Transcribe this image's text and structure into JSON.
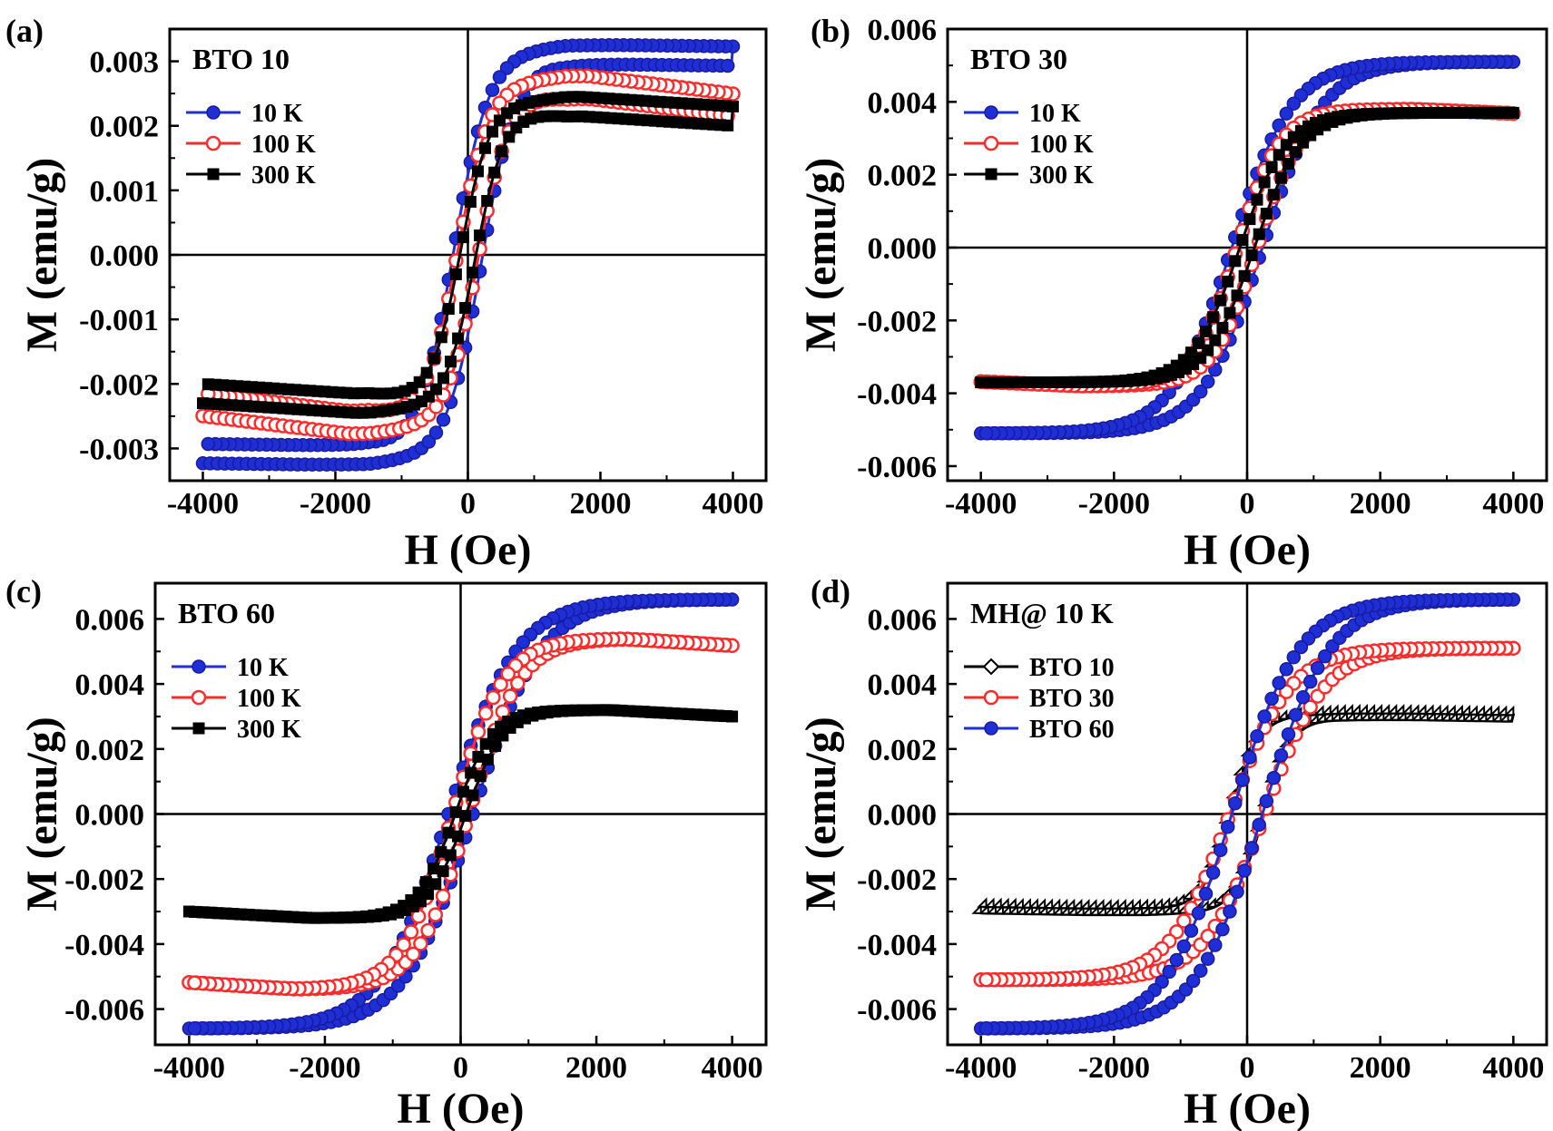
{
  "chart_data": [
    {
      "type": "line",
      "panel": "(a)",
      "title": "BTO 10",
      "xlabel": "H (Oe)",
      "ylabel": "M (emu/g)",
      "xlim": [
        -4500,
        4500
      ],
      "ylim": [
        -0.0035,
        0.0035
      ],
      "xticks": [
        -4000,
        -2000,
        0,
        2000,
        4000
      ],
      "yticks": [
        -0.003,
        -0.002,
        -0.001,
        0.0,
        0.001,
        0.002,
        0.003
      ],
      "ytick_labels": [
        "-0.003",
        "-0.002",
        "-0.001",
        "0.000",
        "0.001",
        "0.002",
        "0.003"
      ],
      "legend_position": "upper-left",
      "series": [
        {
          "name": "10 K",
          "color": "#1f2fd6",
          "marker": "filled-circle",
          "hysteresis": {
            "Ms": 0.0031,
            "Hc": 220,
            "width": 520,
            "peak": 2400,
            "decline": 2e-05,
            "loop_split": 0.0003
          }
        },
        {
          "name": "100 K",
          "color": "#ff2a2a",
          "marker": "open-circle",
          "hysteresis": {
            "Ms": 0.0026,
            "Hc": 160,
            "width": 460,
            "peak": 1800,
            "decline": 0.00028,
            "loop_split": 0.00035
          }
        },
        {
          "name": "300 K",
          "color": "#000000",
          "marker": "filled-square",
          "hysteresis": {
            "Ms": 0.0023,
            "Hc": 120,
            "width": 430,
            "peak": 1700,
            "decline": 0.00015,
            "loop_split": 0.0003
          }
        }
      ]
    },
    {
      "type": "line",
      "panel": "(b)",
      "title": "BTO 30",
      "xlabel": "H (Oe)",
      "ylabel": "M (emu/g)",
      "xlim": [
        -4500,
        4500
      ],
      "ylim": [
        -0.0064,
        0.006
      ],
      "xticks": [
        -4000,
        -2000,
        0,
        2000,
        4000
      ],
      "yticks": [
        -0.006,
        -0.004,
        -0.002,
        0.0,
        0.002,
        0.004,
        0.006
      ],
      "ytick_labels": [
        "-0.006",
        "-0.004",
        "-0.002",
        "0.000",
        "0.002",
        "0.004",
        "0.006"
      ],
      "legend_position": "upper-left",
      "series": [
        {
          "name": "10 K",
          "color": "#1f2fd6",
          "marker": "filled-circle",
          "hysteresis": {
            "Ms": 0.0051,
            "Hc": 230,
            "width": 900,
            "peak": 0,
            "decline": 0,
            "loop_split": 0
          }
        },
        {
          "name": "100 K",
          "color": "#ff2a2a",
          "marker": "open-circle",
          "hysteresis": {
            "Ms": 0.0038,
            "Hc": 150,
            "width": 650,
            "peak": 2500,
            "decline": 0.00012,
            "loop_split": 0
          }
        },
        {
          "name": "300 K",
          "color": "#000000",
          "marker": "filled-square",
          "hysteresis": {
            "Ms": 0.0037,
            "Hc": 110,
            "width": 700,
            "peak": 0,
            "decline": 0,
            "loop_split": 0
          }
        }
      ]
    },
    {
      "type": "line",
      "panel": "(c)",
      "title": "BTO 60",
      "xlabel": "H (Oe)",
      "ylabel": "M (emu/g)",
      "xlim": [
        -4500,
        4500
      ],
      "ylim": [
        -0.0071,
        0.0071
      ],
      "xticks": [
        -4000,
        -2000,
        0,
        2000,
        4000
      ],
      "yticks": [
        -0.006,
        -0.004,
        -0.002,
        0.0,
        0.002,
        0.004,
        0.006
      ],
      "ytick_labels": [
        "-0.006",
        "-0.004",
        "-0.002",
        "0.000",
        "0.002",
        "0.004",
        "0.006"
      ],
      "legend_position": "upper-left",
      "series": [
        {
          "name": "10 K",
          "color": "#1f2fd6",
          "marker": "filled-circle",
          "hysteresis": {
            "Ms": 0.0066,
            "Hc": 180,
            "width": 1000,
            "peak": 0,
            "decline": 0,
            "loop_split": 0
          }
        },
        {
          "name": "100 K",
          "color": "#ff2a2a",
          "marker": "open-circle",
          "hysteresis": {
            "Ms": 0.0054,
            "Hc": 120,
            "width": 750,
            "peak": 2400,
            "decline": 0.00022,
            "loop_split": 0
          }
        },
        {
          "name": "300 K",
          "color": "#000000",
          "marker": "filled-square",
          "hysteresis": {
            "Ms": 0.0032,
            "Hc": 80,
            "width": 550,
            "peak": 2200,
            "decline": 0.0002,
            "loop_split": 0
          }
        }
      ]
    },
    {
      "type": "line",
      "panel": "(d)",
      "title": "MH@ 10 K",
      "xlabel": "H (Oe)",
      "ylabel": "M (emu/g)",
      "xlim": [
        -4500,
        4500
      ],
      "ylim": [
        -0.0071,
        0.0071
      ],
      "xticks": [
        -4000,
        -2000,
        0,
        2000,
        4000
      ],
      "yticks": [
        -0.006,
        -0.004,
        -0.002,
        0.0,
        0.002,
        0.004,
        0.006
      ],
      "ytick_labels": [
        "-0.006",
        "-0.004",
        "-0.002",
        "0.000",
        "0.002",
        "0.004",
        "0.006"
      ],
      "legend_position": "upper-left",
      "series": [
        {
          "name": "BTO 10",
          "color": "#000000",
          "marker": "open-diamond",
          "hysteresis": {
            "Ms": 0.003,
            "Hc": 250,
            "width": 420,
            "peak": 2400,
            "decline": 5e-05,
            "loop_split": 0.0002
          }
        },
        {
          "name": "BTO 30",
          "color": "#ff2a2a",
          "marker": "open-circle",
          "hysteresis": {
            "Ms": 0.0051,
            "Hc": 260,
            "width": 900,
            "peak": 0,
            "decline": 0,
            "loop_split": 0
          }
        },
        {
          "name": "BTO 60",
          "color": "#1f2fd6",
          "marker": "filled-circle",
          "hysteresis": {
            "Ms": 0.0066,
            "Hc": 230,
            "width": 1000,
            "peak": 0,
            "decline": 0,
            "loop_split": 0
          }
        }
      ]
    }
  ]
}
